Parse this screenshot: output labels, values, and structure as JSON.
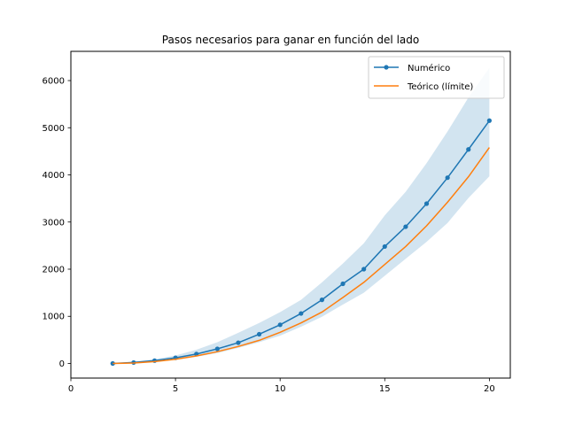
{
  "chart_data": {
    "type": "line",
    "title": "Pasos necesarios para ganar en función del lado",
    "xlabel": "",
    "ylabel": "",
    "xlim": [
      0,
      21
    ],
    "ylim": [
      -310,
      6620
    ],
    "xticks": [
      0,
      5,
      10,
      15,
      20
    ],
    "yticks": [
      0,
      1000,
      2000,
      3000,
      4000,
      5000,
      6000
    ],
    "grid": false,
    "legend_position": "top-right",
    "x": [
      2,
      3,
      4,
      5,
      6,
      7,
      8,
      9,
      10,
      11,
      12,
      13,
      14,
      15,
      16,
      17,
      18,
      19,
      20
    ],
    "series": [
      {
        "name": "Numérico",
        "color": "#1f77b4",
        "marker": "circle",
        "values": [
          0,
          20,
          60,
          120,
          200,
          310,
          440,
          620,
          820,
          1060,
          1350,
          1690,
          2000,
          2480,
          2900,
          3390,
          3940,
          4540,
          5150
        ],
        "band_upper": [
          5,
          40,
          90,
          170,
          290,
          450,
          650,
          860,
          1090,
          1350,
          1720,
          2120,
          2550,
          3140,
          3640,
          4250,
          4920,
          5640,
          6270
        ],
        "band_lower": [
          0,
          5,
          35,
          80,
          140,
          220,
          330,
          450,
          590,
          780,
          990,
          1250,
          1500,
          1860,
          2220,
          2580,
          2980,
          3510,
          3970
        ]
      },
      {
        "name": "Teórico (límite)",
        "color": "#ff7f0e",
        "marker": "none",
        "values": [
          0,
          10,
          40,
          90,
          160,
          250,
          360,
          490,
          660,
          860,
          1090,
          1400,
          1720,
          2100,
          2480,
          2920,
          3420,
          3960,
          4580
        ]
      }
    ],
    "band_color": "#1f77b4"
  }
}
